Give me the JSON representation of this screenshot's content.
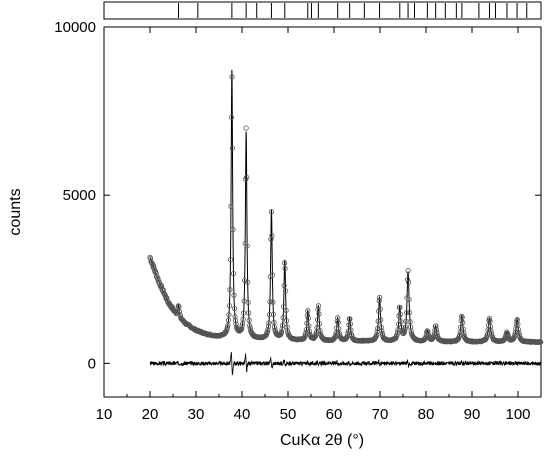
{
  "chart_data": {
    "type": "scatter",
    "title": "",
    "xlabel": "CuKα 2θ (°)",
    "ylabel": "counts",
    "xlim": [
      10,
      105
    ],
    "ylim": [
      -1000,
      10000
    ],
    "x_ticks": [
      10,
      20,
      30,
      40,
      50,
      60,
      70,
      80,
      90,
      100
    ],
    "y_ticks": [
      0,
      5000,
      10000
    ],
    "grid": false,
    "legend": "none",
    "colors": {
      "observed": "#555555",
      "calculated": "#000000",
      "difference": "#000000",
      "reflection_ticks": "#000000"
    },
    "background": {
      "x": [
        20,
        22,
        24,
        26,
        28,
        30,
        32,
        34,
        36,
        40,
        50,
        60,
        70,
        80,
        90,
        100,
        105
      ],
      "y": [
        3150,
        2400,
        1800,
        1400,
        1150,
        980,
        870,
        800,
        760,
        720,
        680,
        660,
        650,
        640,
        630,
        630,
        630
      ]
    },
    "peaks": [
      {
        "two_theta": 26.2,
        "intensity": 1750
      },
      {
        "two_theta": 37.8,
        "intensity": 8700
      },
      {
        "two_theta": 40.9,
        "intensity": 6850
      },
      {
        "two_theta": 46.4,
        "intensity": 4550
      },
      {
        "two_theta": 49.3,
        "intensity": 3050
      },
      {
        "two_theta": 54.3,
        "intensity": 1550
      },
      {
        "two_theta": 56.6,
        "intensity": 1700
      },
      {
        "two_theta": 60.8,
        "intensity": 1350
      },
      {
        "two_theta": 63.4,
        "intensity": 1350
      },
      {
        "two_theta": 69.9,
        "intensity": 1950
      },
      {
        "two_theta": 74.3,
        "intensity": 1650
      },
      {
        "two_theta": 76.1,
        "intensity": 2700
      },
      {
        "two_theta": 80.3,
        "intensity": 950
      },
      {
        "two_theta": 82.1,
        "intensity": 1100
      },
      {
        "two_theta": 87.8,
        "intensity": 1400
      },
      {
        "two_theta": 93.8,
        "intensity": 1350
      },
      {
        "two_theta": 97.6,
        "intensity": 900
      },
      {
        "two_theta": 99.8,
        "intensity": 1300
      }
    ],
    "difference_offset": 0,
    "reflection_positions": [
      26.2,
      30.4,
      37.8,
      40.9,
      43.2,
      46.4,
      49.3,
      54.3,
      55.1,
      56.6,
      60.8,
      63.4,
      66.6,
      69.9,
      74.3,
      76.1,
      77.5,
      80.3,
      82.1,
      84.2,
      86.6,
      87.8,
      91.5,
      93.8,
      95.1,
      97.6,
      99.8,
      101.9
    ]
  }
}
